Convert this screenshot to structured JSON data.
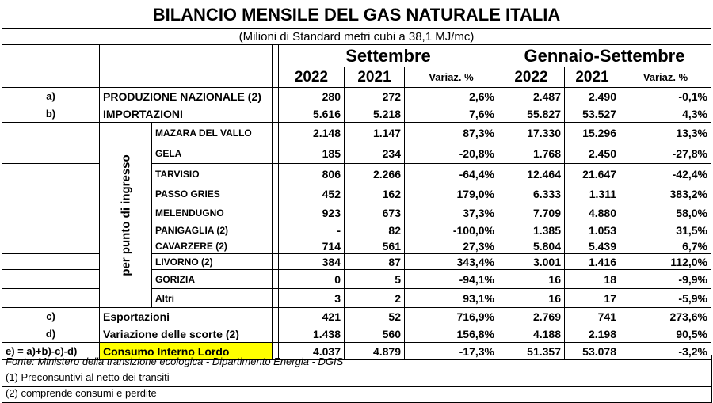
{
  "title": "BILANCIO MENSILE DEL GAS NATURALE ITALIA",
  "subtitle": "(Milioni di Standard metri cubi a 38,1 MJ/mc)",
  "groups": {
    "month": "Settembre",
    "ytd": "Gennaio-Settembre"
  },
  "columns": {
    "y1": "2022",
    "y2": "2021",
    "var": "Variaz. %",
    "y3": "2022",
    "y4": "2021",
    "var2": "Variaz. %"
  },
  "side_label": "per punto di ingresso",
  "rows": [
    {
      "key": "a)",
      "label": "PRODUZIONE NAZIONALE (2)",
      "v": [
        "280",
        "272",
        "2,6%",
        "2.487",
        "2.490",
        "-0,1%"
      ]
    },
    {
      "key": "b)",
      "label": "IMPORTAZIONI",
      "v": [
        "5.616",
        "5.218",
        "7,6%",
        "55.827",
        "53.527",
        "4,3%"
      ]
    }
  ],
  "entry_points": [
    {
      "label": "MAZARA DEL VALLO",
      "v": [
        "2.148",
        "1.147",
        "87,3%",
        "17.330",
        "15.296",
        "13,3%"
      ]
    },
    {
      "label": "GELA",
      "v": [
        "185",
        "234",
        "-20,8%",
        "1.768",
        "2.450",
        "-27,8%"
      ]
    },
    {
      "label": "TARVISIO",
      "v": [
        "806",
        "2.266",
        "-64,4%",
        "12.464",
        "21.647",
        "-42,4%"
      ]
    },
    {
      "label": "PASSO GRIES",
      "v": [
        "452",
        "162",
        "179,0%",
        "6.333",
        "1.311",
        "383,2%"
      ]
    },
    {
      "label": "MELENDUGNO",
      "v": [
        "923",
        "673",
        "37,3%",
        "7.709",
        "4.880",
        "58,0%"
      ]
    },
    {
      "label": "PANIGAGLIA (2)",
      "v": [
        "-",
        "82",
        "-100,0%",
        "1.385",
        "1.053",
        "31,5%"
      ]
    },
    {
      "label": "CAVARZERE (2)",
      "v": [
        "714",
        "561",
        "27,3%",
        "5.804",
        "5.439",
        "6,7%"
      ]
    },
    {
      "label": "LIVORNO (2)",
      "v": [
        "384",
        "87",
        "343,4%",
        "3.001",
        "1.416",
        "112,0%"
      ]
    },
    {
      "label": "GORIZIA",
      "v": [
        "0",
        "5",
        "-94,1%",
        "16",
        "18",
        "-9,9%"
      ]
    },
    {
      "label": "Altri",
      "v": [
        "3",
        "2",
        "93,1%",
        "16",
        "17",
        "-5,9%"
      ]
    }
  ],
  "bottom_rows": [
    {
      "key": "c)",
      "label": "Esportazioni",
      "v": [
        "421",
        "52",
        "716,9%",
        "2.769",
        "741",
        "273,6%"
      ]
    },
    {
      "key": "d)",
      "label": "Variazione delle scorte (2)",
      "v": [
        "1.438",
        "560",
        "156,8%",
        "4.188",
        "2.198",
        "90,5%"
      ]
    },
    {
      "key": "e) = a)+b)-c)-d)",
      "label": "Consumo Interno Lordo",
      "v": [
        "4.037",
        "4.879",
        "-17,3%",
        "51.357",
        "53.078",
        "-3,2%"
      ]
    }
  ],
  "notes": {
    "source": "Fonte: Ministero della transizione ecologica - Dipartimento Energia - DGIS",
    "n1": "(1) Preconsuntivi al netto dei transiti",
    "n2": "(2) comprende consumi e perdite"
  },
  "colors": {
    "highlight": "#ffff00"
  }
}
